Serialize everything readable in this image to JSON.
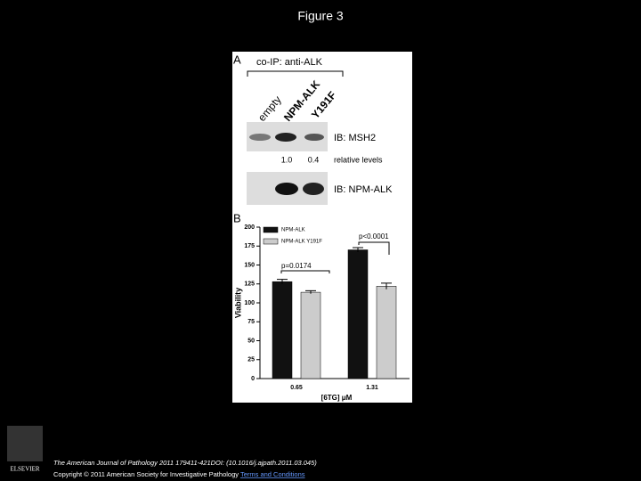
{
  "header": {
    "title": "Figure 3"
  },
  "panel_a": {
    "label": "A",
    "heading": "co-IP: anti-ALK",
    "lanes": [
      "empty",
      "NPM-ALK",
      "Y191F"
    ],
    "blot_1": "IB: MSH2",
    "levels": [
      "1.0",
      "0.4"
    ],
    "levels_label": "relative levels",
    "blot_2": "IB: NPM-ALK"
  },
  "panel_b": {
    "label": "B"
  },
  "chart_data": {
    "type": "bar",
    "xlabel": "[6TG] μM",
    "ylabel": "Viability",
    "categories": [
      "0.65",
      "1.31"
    ],
    "series": [
      {
        "name": "NPM-ALK",
        "color": "#111111",
        "values": [
          128,
          170
        ],
        "errors": [
          3,
          3
        ]
      },
      {
        "name": "NPM-ALK Y191F",
        "color": "#cccccc",
        "values": [
          114,
          122
        ],
        "errors": [
          2,
          4
        ]
      }
    ],
    "ylim": [
      0,
      200
    ],
    "yticks": [
      0,
      25,
      50,
      75,
      100,
      125,
      150,
      175,
      200
    ],
    "annotations": [
      "p=0.0174",
      "p<0.0001"
    ]
  },
  "footer": {
    "logo": "ELSEVIER",
    "citation": "The American Journal of Pathology 2011 179411-421DOI: (10.1016/j.ajpath.2011.03.045)",
    "copyright": "Copyright © 2011 American Society for Investigative Pathology",
    "link": "Terms and Conditions"
  }
}
